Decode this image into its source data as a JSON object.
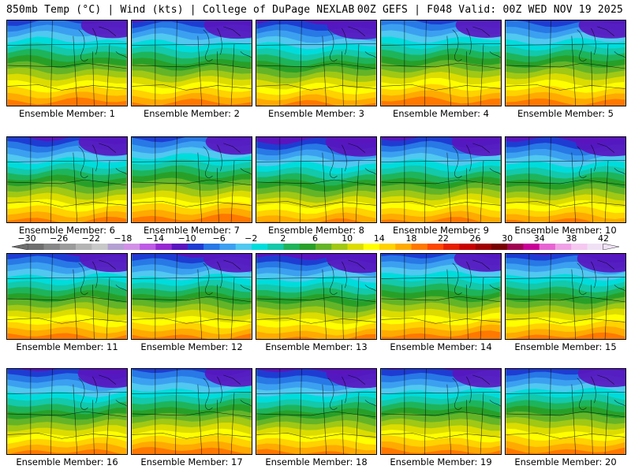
{
  "header": {
    "left": "850mb Temp (°C) | Wind (kts) | College of DuPage NEXLAB",
    "right": "00Z GEFS | F048 Valid: 00Z WED NOV 19 2025"
  },
  "colorbar": {
    "labels": [
      "−30",
      "−26",
      "−22",
      "−18",
      "−14",
      "−10",
      "−6",
      "−2",
      "2",
      "6",
      "10",
      "14",
      "18",
      "22",
      "26",
      "30",
      "34",
      "38",
      "42"
    ],
    "colors": [
      "#6e6e6e",
      "#878787",
      "#9b9b9b",
      "#b4b4b4",
      "#c8c8c8",
      "#b4a0d2",
      "#d291e6",
      "#be5ae6",
      "#9628d2",
      "#5a14be",
      "#1e3cd2",
      "#2878e6",
      "#3ca0f0",
      "#50c8f0",
      "#00dcdc",
      "#14c8aa",
      "#1eb45a",
      "#28a028",
      "#64b428",
      "#a0c814",
      "#dcdc00",
      "#ffff00",
      "#ffd200",
      "#ffaa00",
      "#ff7800",
      "#ff4600",
      "#e61e00",
      "#c80000",
      "#a00000",
      "#780000",
      "#a00050",
      "#c80096",
      "#e664d2",
      "#f0a0e6",
      "#f5c8f0",
      "#f0e1f5"
    ]
  },
  "panels": [
    {
      "label": "Ensemble Member: 1",
      "cool": 0.35,
      "warm": 0.55
    },
    {
      "label": "Ensemble Member: 2",
      "cool": 0.45,
      "warm": 0.45
    },
    {
      "label": "Ensemble Member: 3",
      "cool": 0.55,
      "warm": 0.4
    },
    {
      "label": "Ensemble Member: 4",
      "cool": 0.3,
      "warm": 0.6
    },
    {
      "label": "Ensemble Member: 5",
      "cool": 0.4,
      "warm": 0.6
    },
    {
      "label": "Ensemble Member: 6",
      "cool": 0.5,
      "warm": 0.45
    },
    {
      "label": "Ensemble Member: 7",
      "cool": 0.35,
      "warm": 0.6
    },
    {
      "label": "Ensemble Member: 8",
      "cool": 0.65,
      "warm": 0.3
    },
    {
      "label": "Ensemble Member: 9",
      "cool": 0.55,
      "warm": 0.4
    },
    {
      "label": "Ensemble Member: 10",
      "cool": 0.6,
      "warm": 0.35
    },
    {
      "label": "Ensemble Member: 11",
      "cool": 0.45,
      "warm": 0.5
    },
    {
      "label": "Ensemble Member: 12",
      "cool": 0.5,
      "warm": 0.45
    },
    {
      "label": "Ensemble Member: 13",
      "cool": 0.6,
      "warm": 0.4
    },
    {
      "label": "Ensemble Member: 14",
      "cool": 0.4,
      "warm": 0.65
    },
    {
      "label": "Ensemble Member: 15",
      "cool": 0.5,
      "warm": 0.55
    },
    {
      "label": "Ensemble Member: 16",
      "cool": 0.55,
      "warm": 0.45
    },
    {
      "label": "Ensemble Member: 17",
      "cool": 0.4,
      "warm": 0.55
    },
    {
      "label": "Ensemble Member: 18",
      "cool": 0.6,
      "warm": 0.5
    },
    {
      "label": "Ensemble Member: 19",
      "cool": 0.5,
      "warm": 0.6
    },
    {
      "label": "Ensemble Member: 20",
      "cool": 0.45,
      "warm": 0.6
    }
  ]
}
